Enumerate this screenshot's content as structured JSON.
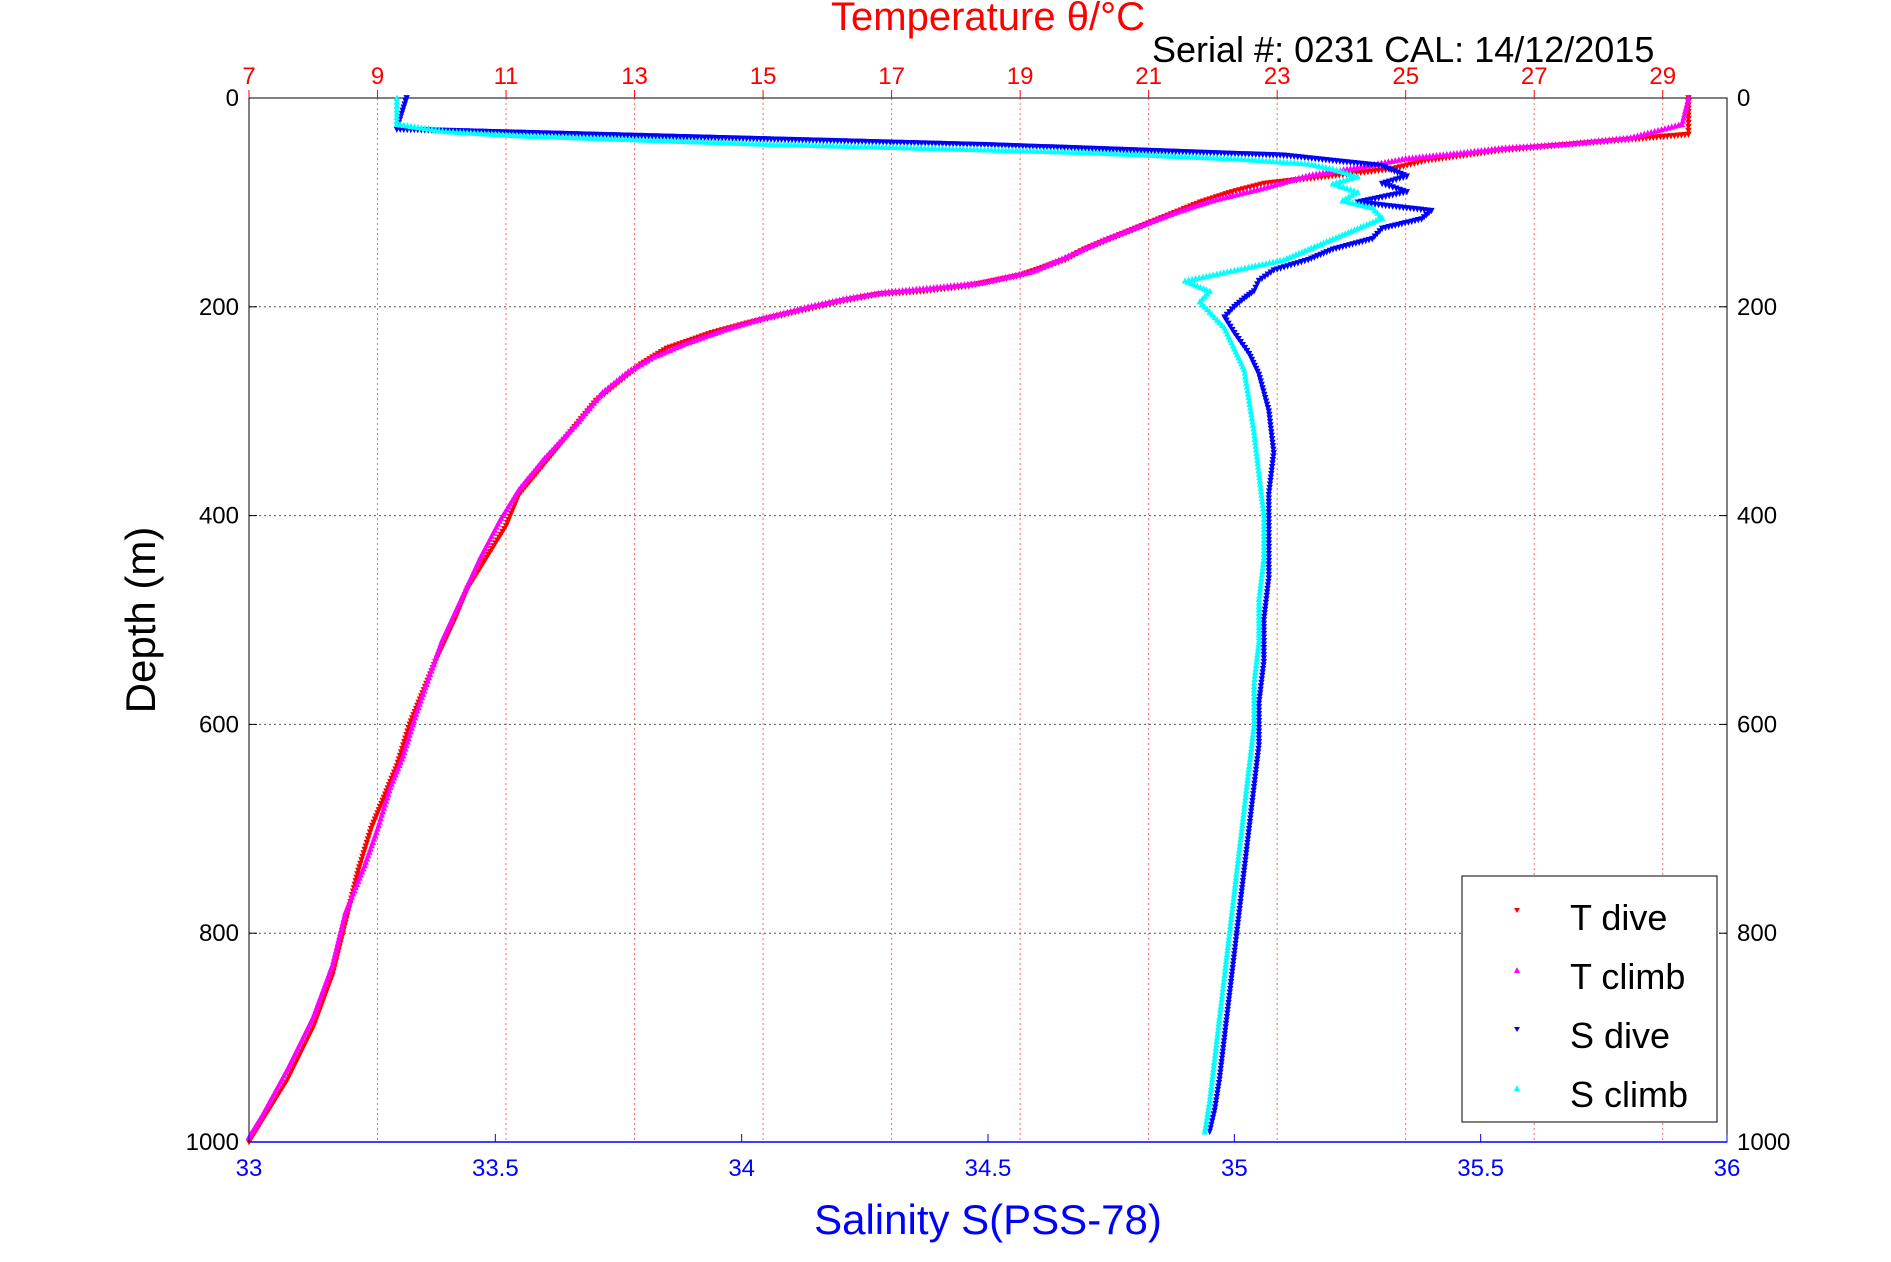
{
  "chart_data": {
    "type": "scatter",
    "title": "Temperature θ/°C",
    "subtitle": "Serial #: 0231  CAL: 14/12/2015",
    "xlabel": "Salinity S(PSS-78)",
    "ylabel": "Depth (m)",
    "x_top_label": "Temperature θ/°C",
    "y_reversed": true,
    "ylim": [
      0,
      1000
    ],
    "ytick_values": [
      0,
      200,
      400,
      600,
      800,
      1000
    ],
    "xlim_salinity": [
      33,
      36
    ],
    "xtick_salinity_values": [
      33,
      33.5,
      34,
      34.5,
      35,
      35.5,
      36
    ],
    "xtick_salinity_labels": [
      "33",
      "33.5",
      "34",
      "34.5",
      "35",
      "35.5",
      "36"
    ],
    "xlim_temperature": [
      7,
      30
    ],
    "xtick_temperature_values": [
      7,
      9,
      11,
      13,
      15,
      17,
      19,
      21,
      23,
      25,
      27,
      29
    ],
    "grid": true,
    "legend_position": "bottom-right",
    "legend": [
      "T dive",
      "T climb",
      "S dive",
      "S climb"
    ],
    "series": [
      {
        "name": "T dive",
        "axis": "temperature",
        "color": "#ff0000",
        "marker": "triangle-down",
        "points": [
          [
            29.4,
            0
          ],
          [
            29.4,
            20
          ],
          [
            29.4,
            35
          ],
          [
            26.5,
            50
          ],
          [
            25.3,
            60
          ],
          [
            24.8,
            68
          ],
          [
            23.8,
            75
          ],
          [
            22.8,
            82
          ],
          [
            22.3,
            90
          ],
          [
            21.8,
            100
          ],
          [
            21.2,
            115
          ],
          [
            20.8,
            125
          ],
          [
            20.4,
            135
          ],
          [
            20.0,
            145
          ],
          [
            19.7,
            155
          ],
          [
            19.0,
            170
          ],
          [
            18.2,
            180
          ],
          [
            17.5,
            185
          ],
          [
            16.8,
            188
          ],
          [
            16.2,
            195
          ],
          [
            15.5,
            205
          ],
          [
            14.8,
            215
          ],
          [
            14.2,
            225
          ],
          [
            13.5,
            240
          ],
          [
            13.1,
            255
          ],
          [
            12.8,
            270
          ],
          [
            12.4,
            290
          ],
          [
            12.0,
            320
          ],
          [
            11.6,
            350
          ],
          [
            11.2,
            380
          ],
          [
            11.0,
            410
          ],
          [
            10.7,
            440
          ],
          [
            10.4,
            470
          ],
          [
            10.2,
            500
          ],
          [
            9.9,
            540
          ],
          [
            9.7,
            570
          ],
          [
            9.5,
            600
          ],
          [
            9.3,
            640
          ],
          [
            9.1,
            670
          ],
          [
            8.9,
            700
          ],
          [
            8.7,
            740
          ],
          [
            8.5,
            790
          ],
          [
            8.3,
            840
          ],
          [
            8.0,
            890
          ],
          [
            7.6,
            940
          ],
          [
            7.0,
            1000
          ]
        ]
      },
      {
        "name": "T climb",
        "axis": "temperature",
        "color": "#ff00ff",
        "marker": "triangle-up",
        "points": [
          [
            29.4,
            0
          ],
          [
            29.3,
            25
          ],
          [
            28.5,
            38
          ],
          [
            27.5,
            44
          ],
          [
            26.5,
            48
          ],
          [
            25.8,
            53
          ],
          [
            25.0,
            58
          ],
          [
            24.3,
            66
          ],
          [
            23.5,
            74
          ],
          [
            22.8,
            86
          ],
          [
            22.0,
            98
          ],
          [
            21.4,
            110
          ],
          [
            20.8,
            124
          ],
          [
            20.3,
            136
          ],
          [
            19.8,
            150
          ],
          [
            19.2,
            166
          ],
          [
            18.4,
            177
          ],
          [
            17.6,
            182
          ],
          [
            16.9,
            186
          ],
          [
            16.3,
            192
          ],
          [
            15.7,
            200
          ],
          [
            15.0,
            211
          ],
          [
            14.4,
            222
          ],
          [
            13.8,
            235
          ],
          [
            13.3,
            248
          ],
          [
            12.9,
            262
          ],
          [
            12.5,
            282
          ],
          [
            12.1,
            312
          ],
          [
            11.6,
            345
          ],
          [
            11.2,
            375
          ],
          [
            10.9,
            405
          ],
          [
            10.6,
            440
          ],
          [
            10.3,
            480
          ],
          [
            10.0,
            520
          ],
          [
            9.8,
            555
          ],
          [
            9.6,
            590
          ],
          [
            9.4,
            630
          ],
          [
            9.2,
            660
          ],
          [
            9.0,
            700
          ],
          [
            8.8,
            735
          ],
          [
            8.5,
            780
          ],
          [
            8.3,
            830
          ],
          [
            8.0,
            880
          ],
          [
            7.6,
            930
          ],
          [
            7.2,
            975
          ],
          [
            7.0,
            995
          ]
        ]
      },
      {
        "name": "S dive",
        "axis": "salinity",
        "color": "#0000ff",
        "marker": "triangle-down",
        "points": [
          [
            33.32,
            0
          ],
          [
            33.31,
            15
          ],
          [
            33.3,
            30
          ],
          [
            34.5,
            45
          ],
          [
            35.1,
            55
          ],
          [
            35.3,
            65
          ],
          [
            35.35,
            75
          ],
          [
            35.3,
            82
          ],
          [
            35.35,
            90
          ],
          [
            35.25,
            100
          ],
          [
            35.4,
            108
          ],
          [
            35.38,
            116
          ],
          [
            35.3,
            125
          ],
          [
            35.28,
            135
          ],
          [
            35.2,
            145
          ],
          [
            35.15,
            155
          ],
          [
            35.08,
            165
          ],
          [
            35.05,
            175
          ],
          [
            35.04,
            185
          ],
          [
            35.02,
            192
          ],
          [
            35.0,
            200
          ],
          [
            34.98,
            210
          ],
          [
            35.0,
            225
          ],
          [
            35.03,
            245
          ],
          [
            35.05,
            265
          ],
          [
            35.07,
            300
          ],
          [
            35.08,
            340
          ],
          [
            35.07,
            380
          ],
          [
            35.07,
            420
          ],
          [
            35.07,
            460
          ],
          [
            35.06,
            500
          ],
          [
            35.06,
            540
          ],
          [
            35.05,
            580
          ],
          [
            35.05,
            620
          ],
          [
            35.04,
            660
          ],
          [
            35.03,
            700
          ],
          [
            35.02,
            740
          ],
          [
            35.01,
            780
          ],
          [
            35.0,
            820
          ],
          [
            34.99,
            860
          ],
          [
            34.98,
            900
          ],
          [
            34.97,
            940
          ],
          [
            34.96,
            970
          ],
          [
            34.95,
            990
          ]
        ]
      },
      {
        "name": "S climb",
        "axis": "salinity",
        "color": "#00ffff",
        "marker": "triangle-up",
        "points": [
          [
            33.3,
            0
          ],
          [
            33.3,
            15
          ],
          [
            33.3,
            25
          ],
          [
            33.4,
            32
          ],
          [
            33.55,
            36
          ],
          [
            33.8,
            40
          ],
          [
            34.05,
            44
          ],
          [
            34.3,
            47
          ],
          [
            34.7,
            52
          ],
          [
            35.0,
            58
          ],
          [
            35.15,
            63
          ],
          [
            35.2,
            68
          ],
          [
            35.25,
            75
          ],
          [
            35.2,
            82
          ],
          [
            35.25,
            90
          ],
          [
            35.22,
            98
          ],
          [
            35.28,
            105
          ],
          [
            35.3,
            115
          ],
          [
            35.25,
            125
          ],
          [
            35.2,
            135
          ],
          [
            35.15,
            145
          ],
          [
            35.1,
            155
          ],
          [
            35.0,
            165
          ],
          [
            34.9,
            175
          ],
          [
            34.95,
            185
          ],
          [
            34.93,
            195
          ],
          [
            34.95,
            205
          ],
          [
            34.98,
            220
          ],
          [
            35.0,
            240
          ],
          [
            35.02,
            260
          ],
          [
            35.03,
            290
          ],
          [
            35.04,
            320
          ],
          [
            35.05,
            360
          ],
          [
            35.06,
            400
          ],
          [
            35.06,
            440
          ],
          [
            35.05,
            480
          ],
          [
            35.05,
            520
          ],
          [
            35.04,
            560
          ],
          [
            35.04,
            600
          ],
          [
            35.03,
            640
          ],
          [
            35.02,
            680
          ],
          [
            35.01,
            720
          ],
          [
            35.0,
            760
          ],
          [
            34.99,
            800
          ],
          [
            34.98,
            840
          ],
          [
            34.97,
            880
          ],
          [
            34.96,
            920
          ],
          [
            34.95,
            960
          ],
          [
            34.94,
            990
          ]
        ]
      }
    ]
  }
}
